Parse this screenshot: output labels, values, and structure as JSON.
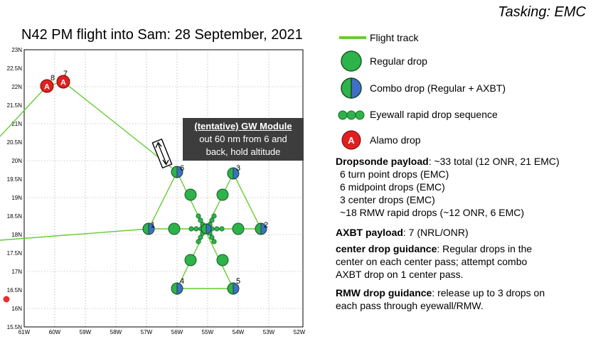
{
  "tasking": "Tasking: EMC",
  "map": {
    "title": "N42 PM flight into Sam: 28 September, 2021",
    "lat_ticks": [
      "23N",
      "22.5N",
      "22N",
      "21.5N",
      "21N",
      "20.5N",
      "20N",
      "19.5N",
      "19N",
      "18.5N",
      "18N",
      "17.5N",
      "17N",
      "16.5N",
      "16N",
      "15.5N"
    ],
    "lon_ticks": [
      "61W",
      "60W",
      "59W",
      "58W",
      "57W",
      "56W",
      "55W",
      "54W",
      "53W",
      "52W"
    ],
    "point_labels": [
      "1",
      "2",
      "3",
      "4",
      "5",
      "6",
      "7",
      "8"
    ],
    "alamo_letter": "A",
    "callout": {
      "title": "(tentative) GW Module",
      "line1": "out 60 nm from 6 and",
      "line2": "back, hold altitude"
    }
  },
  "legend": {
    "flight_track": "Flight track",
    "regular_drop": "Regular drop",
    "combo_drop": "Combo drop (Regular + AXBT)",
    "eyewall": "Eyewall rapid drop sequence",
    "alamo": "Alamo drop",
    "alamo_letter": "A"
  },
  "info": {
    "dropsonde_label": "Dropsonde payload",
    "dropsonde_value": ": ~33 total (12 ONR, 21 EMC)",
    "items": [
      "6 turn point drops (EMC)",
      "6 midpoint drops (EMC)",
      "3 center drops (EMC)",
      "~18 RMW rapid drops (~12 ONR, 6 EMC)"
    ],
    "axbt_label": "AXBT payload",
    "axbt_value": ": 7 (NRL/ONR)",
    "center_label": "center drop guidance",
    "center_value_1": ": Regular drops in the",
    "center_value_2": "center on each center pass; attempt combo",
    "center_value_3": "AXBT drop on 1 center pass.",
    "rmw_label": "RMW drop guidance",
    "rmw_value_1": ": release up to 3 drops on",
    "rmw_value_2": "each pass through eyewall/RMW."
  },
  "colors": {
    "track": "#66cc33",
    "drop_green": "#2db34a",
    "combo_blue": "#3f6fc8",
    "alamo_red": "#e02020",
    "callout_bg": "#3d3d3d"
  }
}
